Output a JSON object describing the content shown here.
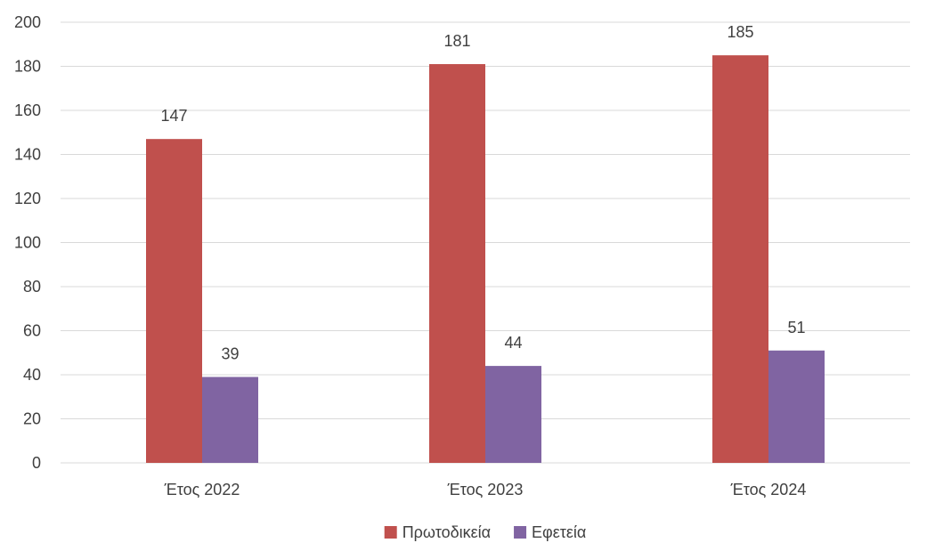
{
  "chart_data": {
    "type": "bar",
    "categories": [
      "Έτος 2022",
      "Έτος 2023",
      "Έτος 2024"
    ],
    "series": [
      {
        "name": "Πρωτοδικεία",
        "color": "#C0504D",
        "values": [
          147,
          181,
          185
        ]
      },
      {
        "name": "Εφετεία",
        "color": "#8064A2",
        "values": [
          39,
          44,
          51
        ]
      }
    ],
    "ylim": [
      0,
      200
    ],
    "yticks": [
      0,
      20,
      40,
      60,
      80,
      100,
      120,
      140,
      160,
      180,
      200
    ],
    "grid": true,
    "legend": "bottom",
    "data_labels": true
  },
  "colors": {
    "gridline": "#D9D9D9",
    "text": "#404040"
  }
}
